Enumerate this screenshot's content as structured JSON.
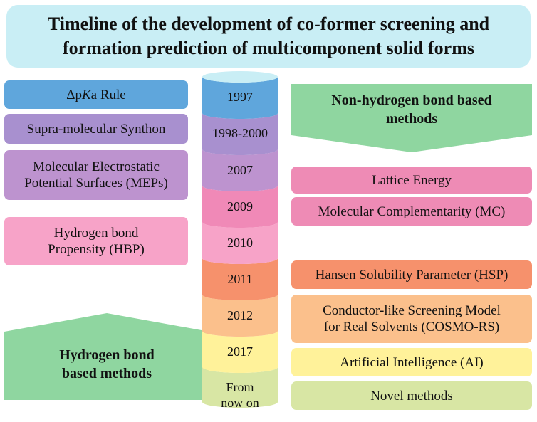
{
  "title": {
    "line1": "Timeline of the development of co-former screening and",
    "line2": "formation prediction of multicomponent solid forms"
  },
  "timeline": {
    "years": [
      "1997",
      "1998-2000",
      "2007",
      "2009",
      "2010",
      "2011",
      "2012",
      "2017"
    ],
    "last_line1": "From",
    "last_line2": "now on",
    "colors": [
      "#5fa6dc",
      "#a890cf",
      "#bd93cf",
      "#f089b7",
      "#f7a3c8",
      "#f6916c",
      "#fbc08c",
      "#fff29a",
      "#d8e6a4"
    ]
  },
  "hydrogen_bond": {
    "label_line1": "Hydrogen bond",
    "label_line2": "based methods",
    "arrow_color": "#8fd6a0",
    "methods": {
      "pka_delta": "Δ",
      "pka_p": "p",
      "pka_K": "K",
      "pka_rest": "a Rule",
      "supra": "Supra-molecular Synthon",
      "mep_line1": "Molecular Electrostatic",
      "mep_line2": "Potential Surfaces (MEPs)",
      "hbp_line1": "Hydrogen bond",
      "hbp_line2": "Propensity (HBP)"
    }
  },
  "non_hydrogen_bond": {
    "label_line1": "Non-hydrogen bond based",
    "label_line2": "methods",
    "arrow_color": "#8fd6a0",
    "methods": {
      "lattice": "Lattice Energy",
      "mc": "Molecular Complementarity (MC)",
      "hsp": "Hansen Solubility Parameter (HSP)",
      "cosmo_line1": "Conductor-like Screening Model",
      "cosmo_line2": "for Real Solvents (COSMO-RS)",
      "ai": "Artificial Intelligence (AI)",
      "novel": "Novel methods"
    }
  }
}
